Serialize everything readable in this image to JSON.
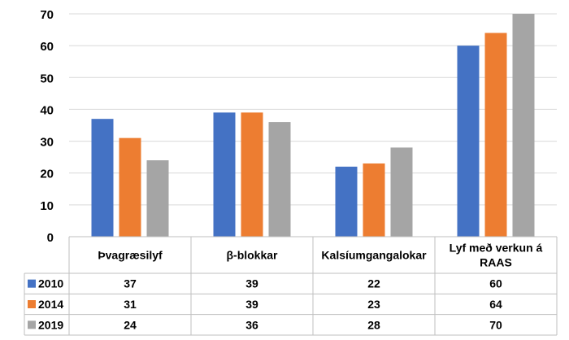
{
  "chart_data": {
    "type": "bar",
    "categories": [
      "Þvagræsilyf",
      "β-blokkar",
      "Kalsíumgangalokar",
      "Lyf með verkun á RAAS"
    ],
    "category_lines": [
      [
        "Þvagræsilyf"
      ],
      [
        "β-blokkar"
      ],
      [
        "Kalsíumgangalokar"
      ],
      [
        "Lyf með verkun á",
        "RAAS"
      ]
    ],
    "series": [
      {
        "name": "2010",
        "color": "#4472C4",
        "values": [
          37,
          39,
          22,
          60
        ]
      },
      {
        "name": "2014",
        "color": "#ED7D31",
        "values": [
          31,
          39,
          23,
          64
        ]
      },
      {
        "name": "2019",
        "color": "#A5A5A5",
        "values": [
          24,
          36,
          28,
          70
        ]
      }
    ],
    "yticks": [
      0,
      10,
      20,
      30,
      40,
      50,
      60,
      70
    ],
    "ylim": [
      0,
      70
    ],
    "grid": true,
    "legend": "data-table",
    "title": "",
    "xlabel": "",
    "ylabel": ""
  }
}
